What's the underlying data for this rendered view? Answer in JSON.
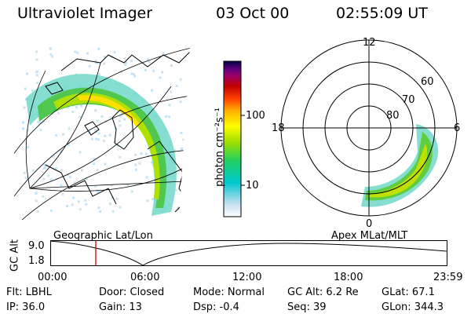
{
  "header": {
    "instrument": "Ultraviolet Imager",
    "date": "03 Oct 00",
    "time": "02:55:09 UT"
  },
  "colorbar": {
    "label": "photon cm⁻²s⁻¹",
    "ticks": [
      "100",
      "10"
    ],
    "tick_values": [
      100,
      10
    ],
    "range": [
      2,
      600
    ],
    "scale": "log",
    "colors": [
      "#ffffff",
      "#c8e0f0",
      "#00c8d0",
      "#20d060",
      "#a0e000",
      "#ffff00",
      "#ffb000",
      "#ff4000",
      "#c00000",
      "#a00060",
      "#600080",
      "#000040"
    ]
  },
  "geo_panel": {
    "label": "Geographic Lat/Lon"
  },
  "apex_panel": {
    "label": "Apex  MLat/MLT",
    "mlt_labels": {
      "top": "12",
      "left": "18",
      "right": "6",
      "bottom": "0"
    },
    "lat_labels": [
      "60",
      "70",
      "80"
    ]
  },
  "altitude_plot": {
    "ylabel": "GC Alt",
    "ytick_top": "9.0",
    "ytick_bottom": "1.8",
    "xticks": [
      "00:00",
      "06:00",
      "12:00",
      "18:00",
      "23:59"
    ],
    "current_time_marker": "02:55",
    "marker_color": "#cc0000"
  },
  "info": {
    "flt": "Flt: LBHL",
    "door": "Door: Closed",
    "mode": "Mode: Normal",
    "gcalt": "GC Alt: 6.2 Re",
    "glat": "GLat:  67.1",
    "ip": "IP: 36.0",
    "gain": "Gain: 13",
    "dsp": "Dsp:   -0.4",
    "seq": "Seq: 39",
    "glon": "GLon: 344.3"
  }
}
